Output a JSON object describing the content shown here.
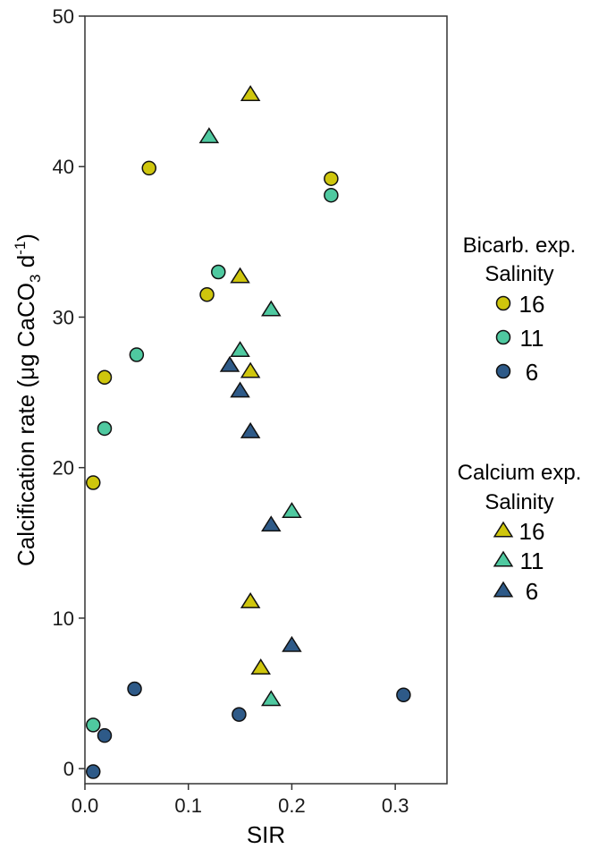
{
  "chart_data": {
    "type": "scatter",
    "xlabel": "SIR",
    "ylabel": {
      "prefix": "Calcification rate (μg CaCO",
      "sub": "3",
      "mid": " d",
      "sup": "-1",
      "suffix": ")"
    },
    "xlim": [
      0,
      0.35
    ],
    "ylim": [
      -1,
      50
    ],
    "x_ticks": [
      0.0,
      0.1,
      0.2,
      0.3
    ],
    "x_tick_labels": [
      "0.0",
      "0.1",
      "0.2",
      "0.3"
    ],
    "y_ticks": [
      0,
      10,
      20,
      30,
      40,
      50
    ],
    "y_tick_labels": [
      "0",
      "10",
      "20",
      "30",
      "40",
      "50"
    ],
    "grid": false,
    "colors": {
      "16": "#CFC60D",
      "11": "#4FC9A0",
      "6": "#2E5A88"
    },
    "legends": [
      {
        "title_lines": [
          "Bicarb. exp.",
          "Salinity"
        ],
        "shape": "circle",
        "items": [
          {
            "label": "16",
            "color": "#CFC60D"
          },
          {
            "label": "11",
            "color": "#4FC9A0"
          },
          {
            "label": "6",
            "color": "#2E5A88"
          }
        ]
      },
      {
        "title_lines": [
          "Calcium exp.",
          "Salinity"
        ],
        "shape": "triangle",
        "items": [
          {
            "label": "16",
            "color": "#CFC60D"
          },
          {
            "label": "11",
            "color": "#4FC9A0"
          },
          {
            "label": "6",
            "color": "#2E5A88"
          }
        ]
      }
    ],
    "series": [
      {
        "experiment": "Bicarb. exp.",
        "salinity": "16",
        "shape": "circle",
        "color": "#CFC60D",
        "points": [
          [
            0.008,
            19.0
          ],
          [
            0.019,
            26.0
          ],
          [
            0.062,
            39.9
          ],
          [
            0.118,
            31.5
          ],
          [
            0.238,
            39.2
          ]
        ]
      },
      {
        "experiment": "Bicarb. exp.",
        "salinity": "11",
        "shape": "circle",
        "color": "#4FC9A0",
        "points": [
          [
            0.008,
            2.9
          ],
          [
            0.019,
            22.6
          ],
          [
            0.05,
            27.5
          ],
          [
            0.129,
            33.0
          ],
          [
            0.238,
            38.1
          ]
        ]
      },
      {
        "experiment": "Bicarb. exp.",
        "salinity": "6",
        "shape": "circle",
        "color": "#2E5A88",
        "points": [
          [
            0.008,
            -0.2
          ],
          [
            0.019,
            2.2
          ],
          [
            0.048,
            5.3
          ],
          [
            0.149,
            3.6
          ],
          [
            0.308,
            4.9
          ]
        ]
      },
      {
        "experiment": "Calcium exp.",
        "salinity": "16",
        "shape": "triangle",
        "color": "#CFC60D",
        "points": [
          [
            0.16,
            44.8
          ],
          [
            0.15,
            32.7
          ],
          [
            0.16,
            26.4
          ],
          [
            0.16,
            11.1
          ],
          [
            0.17,
            6.7
          ]
        ]
      },
      {
        "experiment": "Calcium exp.",
        "salinity": "11",
        "shape": "triangle",
        "color": "#4FC9A0",
        "points": [
          [
            0.12,
            42.0
          ],
          [
            0.18,
            30.5
          ],
          [
            0.15,
            27.8
          ],
          [
            0.2,
            17.1
          ],
          [
            0.18,
            4.6
          ]
        ]
      },
      {
        "experiment": "Calcium exp.",
        "salinity": "6",
        "shape": "triangle",
        "color": "#2E5A88",
        "points": [
          [
            0.14,
            26.8
          ],
          [
            0.15,
            25.1
          ],
          [
            0.16,
            22.4
          ],
          [
            0.18,
            16.2
          ],
          [
            0.2,
            8.2
          ]
        ]
      }
    ]
  }
}
